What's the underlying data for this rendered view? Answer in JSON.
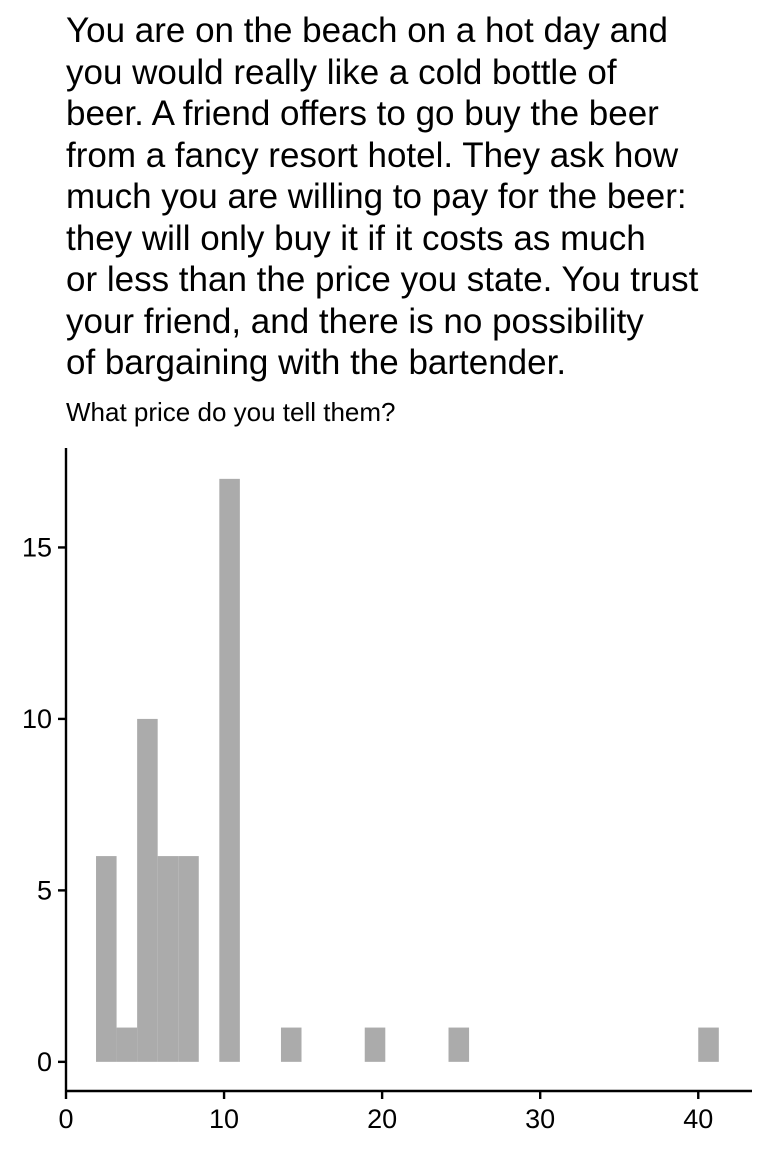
{
  "chart_data": {
    "type": "bar",
    "title": [
      "You are on the beach on a hot day and",
      "you would really like a cold bottle of",
      "beer. A friend offers to go buy the beer",
      "from a fancy resort hotel. They ask how",
      "much you are willing to pay for the beer:",
      "they will only buy it if it costs as much",
      "or less than the price you state. You trust",
      "your friend, and there is no possibility",
      "of bargaining with the bartender."
    ],
    "subtitle": "What price do you tell them?",
    "xlabel": "",
    "ylabel": "",
    "xlim": [
      0,
      43.4
    ],
    "ylim": [
      -0.85,
      17.9
    ],
    "x_ticks": [
      0,
      10,
      20,
      30,
      40
    ],
    "y_ticks": [
      0,
      5,
      10,
      15
    ],
    "bin_width": 1.3,
    "bins": [
      {
        "x0": 1.9,
        "x1": 3.2,
        "count": 6
      },
      {
        "x0": 3.2,
        "x1": 4.5,
        "count": 1
      },
      {
        "x0": 4.5,
        "x1": 5.8,
        "count": 10
      },
      {
        "x0": 5.8,
        "x1": 7.1,
        "count": 6
      },
      {
        "x0": 7.1,
        "x1": 8.4,
        "count": 6
      },
      {
        "x0": 9.7,
        "x1": 11.0,
        "count": 17
      },
      {
        "x0": 13.6,
        "x1": 14.9,
        "count": 1
      },
      {
        "x0": 18.9,
        "x1": 20.2,
        "count": 1
      },
      {
        "x0": 24.2,
        "x1": 25.5,
        "count": 1
      },
      {
        "x0": 40.0,
        "x1": 41.3,
        "count": 1
      }
    ],
    "bar_color": "#ababab",
    "axis_color": "#000000",
    "grid": false,
    "legend": "none"
  }
}
